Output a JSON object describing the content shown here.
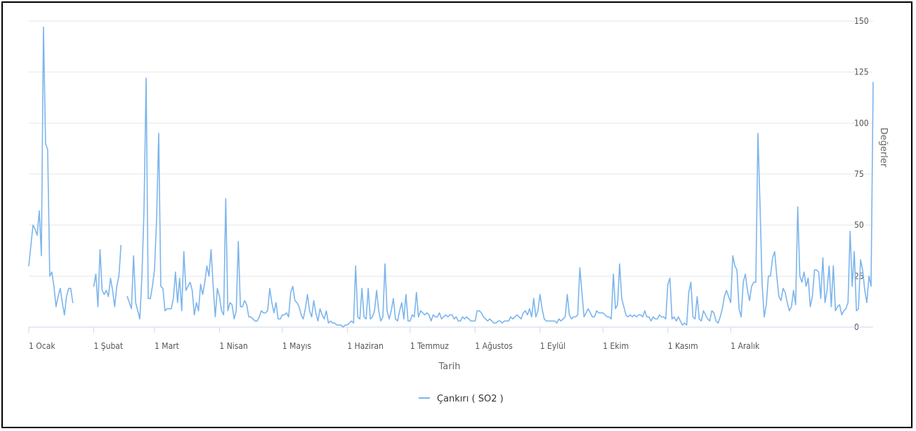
{
  "chart_data": {
    "type": "line",
    "xlabel": "Tarih",
    "ylabel": "Değerler",
    "ylim": [
      0,
      150
    ],
    "yticks": [
      0,
      25,
      50,
      75,
      100,
      125,
      150
    ],
    "x_ticks": [
      "1 Ocak",
      "1 Şubat",
      "1 Mart",
      "1 Nisan",
      "1 Mayıs",
      "1 Haziran",
      "1 Temmuz",
      "1 Ağustos",
      "1 Eylül",
      "1 Ekim",
      "1 Kasım",
      "1 Aralık"
    ],
    "month_lengths": [
      31,
      29,
      31,
      30,
      31,
      30,
      31,
      31,
      30,
      31,
      30,
      31
    ],
    "grid": true,
    "legend_position": "bottom-center",
    "series_color": "#7cb5ec",
    "series": [
      {
        "name": "Çankırı ( SO2 )",
        "values": [
          30,
          40,
          50,
          48,
          45,
          57,
          35,
          147,
          90,
          87,
          25,
          27,
          20,
          10,
          15,
          19,
          12,
          6,
          15,
          19,
          19,
          12,
          null,
          null,
          null,
          null,
          null,
          null,
          null,
          null,
          null,
          20,
          26,
          10,
          38,
          18,
          16,
          18,
          15,
          24,
          18,
          10,
          20,
          25,
          40,
          null,
          null,
          15,
          12,
          9,
          35,
          12,
          8,
          4,
          25,
          58,
          122,
          14,
          14,
          20,
          28,
          53,
          95,
          20,
          19,
          8,
          9,
          9,
          9,
          14,
          27,
          12,
          24,
          8,
          37,
          18,
          20,
          22,
          18,
          6,
          12,
          8,
          21,
          16,
          22,
          30,
          25,
          38,
          20,
          5,
          19,
          15,
          8,
          6,
          63,
          8,
          12,
          11,
          4,
          8,
          42,
          10,
          10,
          13,
          11,
          5,
          5,
          4,
          3,
          3,
          5,
          8,
          7,
          7,
          8,
          19,
          12,
          7,
          12,
          4,
          4,
          6,
          6,
          7,
          5,
          17,
          20,
          13,
          12,
          10,
          6,
          4,
          9,
          16,
          8,
          5,
          13,
          7,
          3,
          9,
          6,
          4,
          8,
          2,
          3,
          2,
          2,
          1,
          1,
          1,
          0,
          1,
          1,
          2,
          3,
          2,
          30,
          5,
          4,
          19,
          5,
          4,
          19,
          4,
          5,
          8,
          18,
          8,
          3,
          5,
          31,
          8,
          4,
          8,
          14,
          4,
          3,
          8,
          12,
          4,
          16,
          3,
          3,
          6,
          5,
          17,
          5,
          8,
          7,
          6,
          7,
          6,
          3,
          6,
          5,
          5,
          7,
          4,
          5,
          6,
          5,
          6,
          6,
          4,
          5,
          3,
          3,
          5,
          4,
          5,
          4,
          3,
          3,
          3,
          8,
          8,
          7,
          5,
          4,
          3,
          4,
          3,
          2,
          2,
          3,
          3,
          2,
          3,
          3,
          3,
          5,
          4,
          5,
          6,
          5,
          4,
          7,
          8,
          6,
          9,
          5,
          14,
          5,
          8,
          16,
          9,
          4,
          3,
          3,
          3,
          3,
          3,
          2,
          4,
          3,
          4,
          5,
          16,
          6,
          4,
          5,
          5,
          6,
          29,
          17,
          5,
          7,
          9,
          7,
          5,
          5,
          8,
          7,
          7,
          7,
          6,
          5,
          5,
          4,
          26,
          9,
          11,
          31,
          14,
          10,
          6,
          5,
          6,
          5,
          6,
          5,
          6,
          6,
          5,
          8,
          5,
          5,
          3,
          5,
          4,
          4,
          6,
          5,
          5,
          4,
          21,
          24,
          4,
          5,
          3,
          5,
          3,
          1,
          2,
          1,
          17,
          22,
          5,
          4,
          15,
          4,
          3,
          8,
          6,
          4,
          3,
          8,
          7,
          3,
          2,
          5,
          9,
          15,
          18,
          15,
          12,
          35,
          30,
          28,
          9,
          5,
          22,
          26,
          18,
          13,
          20,
          22,
          22,
          95,
          60,
          21,
          5,
          11,
          25,
          25,
          34,
          37,
          25,
          15,
          13,
          19,
          17,
          12,
          8,
          10,
          18,
          11,
          59,
          25,
          22,
          27,
          20,
          24,
          10,
          15,
          28,
          28,
          27,
          14,
          34,
          12,
          18,
          30,
          10,
          30,
          8,
          10,
          11,
          6,
          8,
          9,
          12,
          47,
          20,
          37,
          8,
          9,
          33,
          28,
          18,
          12,
          25,
          20,
          120
        ]
      }
    ]
  }
}
